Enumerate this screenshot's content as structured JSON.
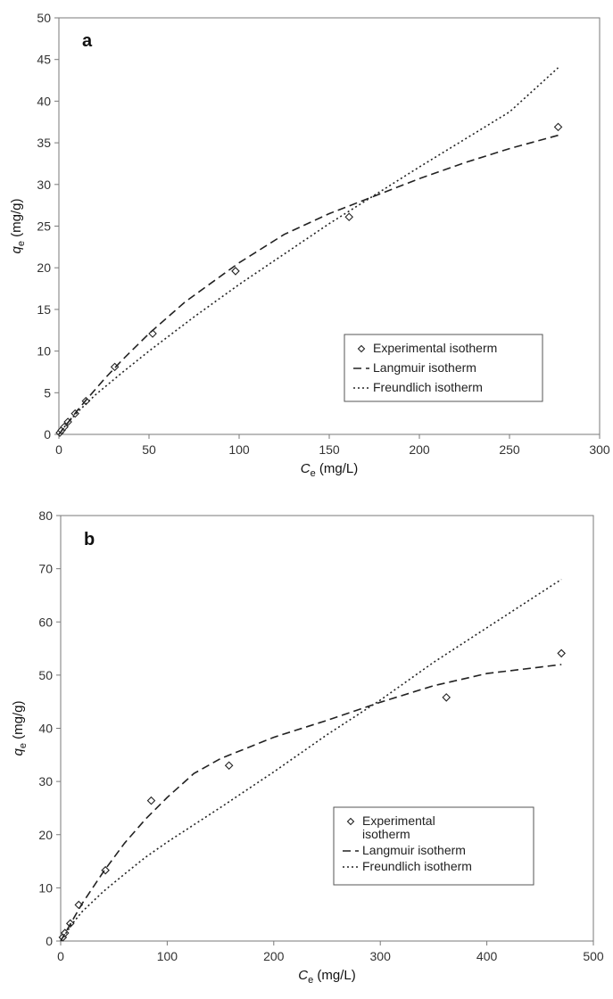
{
  "chart_data": [
    {
      "panel": "a",
      "type": "scatter",
      "xlabel_main": "C",
      "xlabel_sub": "e",
      "xlabel_unit": " (mg/L)",
      "ylabel_main": "q",
      "ylabel_sub": "e",
      "ylabel_unit": " (mg/g)",
      "xlim": [
        0,
        300
      ],
      "ylim": [
        0,
        50
      ],
      "xticks": [
        0,
        50,
        100,
        150,
        200,
        250,
        300
      ],
      "yticks": [
        0,
        5,
        10,
        15,
        20,
        25,
        30,
        35,
        40,
        45,
        50
      ],
      "grid": false,
      "legend_position": "bottom-right",
      "series": [
        {
          "name": "Experimental isotherm",
          "style": "markers",
          "x": [
            0.5,
            1.5,
            3,
            5,
            9,
            15,
            31,
            52,
            98,
            161,
            277
          ],
          "y": [
            0.2,
            0.5,
            0.9,
            1.5,
            2.5,
            4.0,
            8.1,
            12.1,
            19.6,
            26.1,
            36.9
          ]
        },
        {
          "name": "Langmuir isotherm",
          "style": "dashed",
          "x": [
            0,
            5,
            10,
            15,
            25,
            35,
            50,
            70,
            100,
            125,
            150,
            175,
            200,
            225,
            250,
            277
          ],
          "y": [
            0,
            1.4,
            2.8,
            4.1,
            6.6,
            8.9,
            12.1,
            15.9,
            20.6,
            24.0,
            26.5,
            28.6,
            30.7,
            32.6,
            34.3,
            35.9
          ]
        },
        {
          "name": "Freundlich isotherm",
          "style": "dotted",
          "x": [
            0,
            2,
            5,
            10,
            20,
            35,
            50,
            75,
            100,
            150,
            200,
            250,
            277
          ],
          "y": [
            0,
            0.6,
            1.4,
            2.6,
            4.7,
            7.4,
            10.0,
            14.1,
            18.0,
            25.3,
            32.1,
            38.7,
            44.0
          ]
        }
      ]
    },
    {
      "panel": "b",
      "type": "scatter",
      "xlabel_main": "C",
      "xlabel_sub": "e",
      "xlabel_unit": " (mg/L)",
      "ylabel_main": "q",
      "ylabel_sub": "e",
      "ylabel_unit": " (mg/g)",
      "xlim": [
        0,
        500
      ],
      "ylim": [
        0,
        80
      ],
      "xticks": [
        0,
        100,
        200,
        300,
        400,
        500
      ],
      "yticks": [
        0,
        10,
        20,
        30,
        40,
        50,
        60,
        70,
        80
      ],
      "grid": false,
      "legend_position": "bottom-right",
      "series": [
        {
          "name": "Experimental isotherm",
          "name_lines": [
            "Experimental",
            "isotherm"
          ],
          "style": "markers",
          "x": [
            2,
            4,
            9,
            17,
            42,
            85,
            158,
            362,
            470
          ],
          "y": [
            0.7,
            1.5,
            3.3,
            6.8,
            13.3,
            26.4,
            33.0,
            45.8,
            54.1
          ]
        },
        {
          "name": "Langmuir isotherm",
          "style": "dashed",
          "x": [
            0,
            10,
            20,
            40,
            60,
            80,
            100,
            125,
            150,
            200,
            250,
            300,
            350,
            400,
            450,
            470
          ],
          "y": [
            0,
            3.5,
            7.0,
            13.0,
            18.4,
            23.0,
            27.0,
            31.5,
            34.3,
            38.3,
            41.5,
            44.9,
            48.0,
            50.3,
            51.5,
            52.0
          ]
        },
        {
          "name": "Freundlich isotherm",
          "style": "dotted",
          "x": [
            0,
            10,
            20,
            40,
            60,
            80,
            100,
            150,
            200,
            250,
            300,
            350,
            400,
            470
          ],
          "y": [
            0,
            3.0,
            5.5,
            9.3,
            12.6,
            15.8,
            18.6,
            25.1,
            31.8,
            38.8,
            45.3,
            52.4,
            58.9,
            68.0
          ]
        }
      ]
    }
  ]
}
